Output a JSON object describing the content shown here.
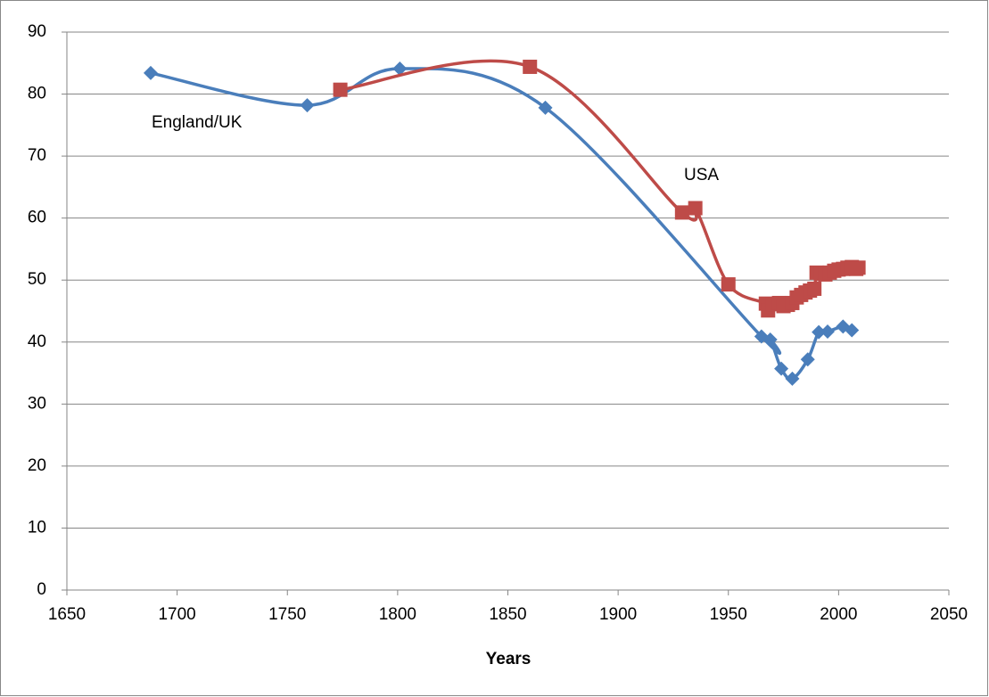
{
  "chart_data": {
    "type": "line",
    "smooth": true,
    "x_label": "Years",
    "xlim": [
      1650,
      2050
    ],
    "xticks": [
      1650,
      1700,
      1750,
      1800,
      1850,
      1900,
      1950,
      2000,
      2050
    ],
    "ylim": [
      0,
      90
    ],
    "yticks": [
      0,
      10,
      20,
      30,
      40,
      50,
      60,
      70,
      80,
      90
    ],
    "grid": true,
    "legend": false,
    "series": [
      {
        "name": "England/UK",
        "color": "#4a7ebb",
        "marker": "diamond",
        "x": [
          1688,
          1759,
          1801,
          1867,
          1965,
          1969,
          1974,
          1979,
          1986,
          1991,
          1995,
          2002,
          2006
        ],
        "values": [
          83.4,
          78.2,
          84.1,
          77.8,
          40.9,
          40.4,
          35.7,
          34.1,
          37.2,
          41.6,
          41.7,
          42.5,
          41.9
        ]
      },
      {
        "name": "USA",
        "color": "#be4b48",
        "marker": "square",
        "x": [
          1774,
          1860,
          1929,
          1935,
          1950,
          1967,
          1968,
          1970,
          1973,
          1975,
          1977,
          1979,
          1981,
          1983,
          1985,
          1987,
          1989,
          1990,
          1992,
          1994,
          1996,
          1998,
          2000,
          2002,
          2004,
          2006,
          2008,
          2009
        ],
        "values": [
          80.7,
          84.4,
          60.9,
          61.6,
          49.3,
          46.2,
          45.1,
          46.1,
          46.3,
          45.8,
          46.0,
          46.3,
          47.2,
          47.6,
          48.0,
          48.3,
          48.6,
          51.2,
          51.0,
          50.9,
          51.2,
          51.5,
          51.7,
          51.8,
          52.0,
          52.1,
          51.8,
          52.0
        ]
      }
    ]
  }
}
